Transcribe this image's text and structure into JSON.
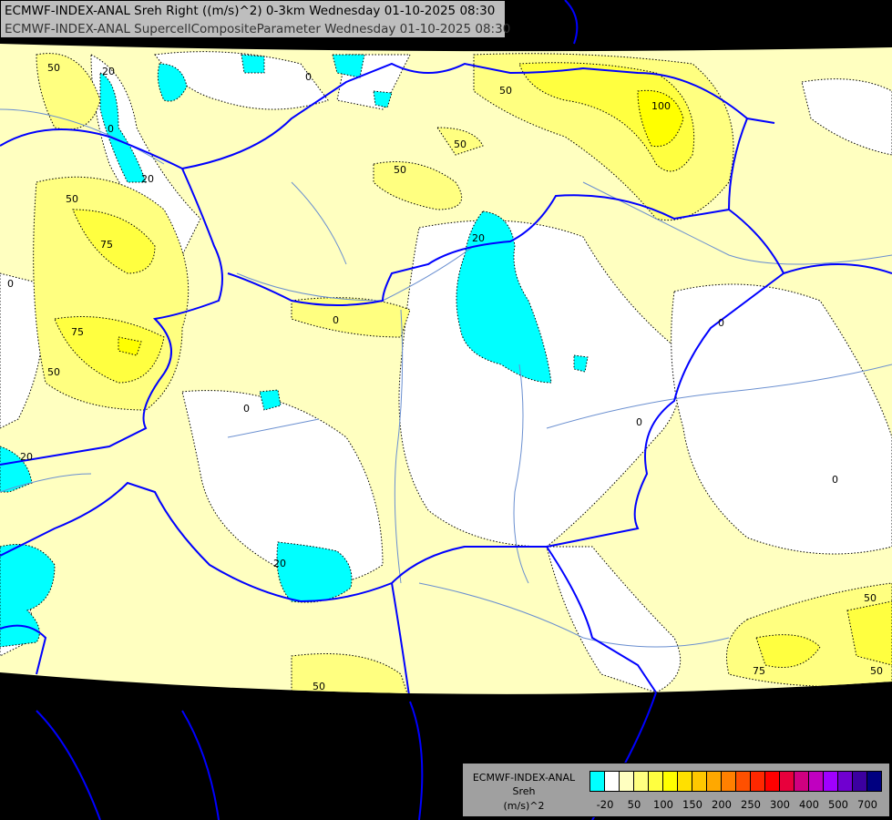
{
  "header": {
    "title_line1": "ECMWF-INDEX-ANAL Sreh Right ((m/s)^2) 0-3km Wednesday 01-10-2025 08:30",
    "title_line2": "ECMWF-INDEX-ANAL SupercellCompositeParameter Wednesday 01-10-2025 08:30"
  },
  "legend": {
    "model": "ECMWF-INDEX-ANAL",
    "variable": "Sreh",
    "unit": "(m/s)^2",
    "colors": [
      "#00ffff",
      "#ffffff",
      "#ffffc0",
      "#ffff80",
      "#ffff40",
      "#ffff00",
      "#ffe000",
      "#ffc800",
      "#ffa800",
      "#ff8000",
      "#ff5000",
      "#ff2800",
      "#ff0000",
      "#e8003c",
      "#d00080",
      "#c000c0",
      "#a000ff",
      "#7000d0",
      "#3c00a0",
      "#000080"
    ],
    "ticks": [
      "-20",
      "50",
      "100",
      "150",
      "200",
      "250",
      "300",
      "400",
      "500",
      "700"
    ]
  },
  "map": {
    "colors": {
      "background": "#000000",
      "field_base": "#ffffc0",
      "field_50": "#ffff80",
      "field_75": "#ffff40",
      "field_100": "#ffff00",
      "negative": "#00ffff",
      "low": "#ffffff",
      "borders": "#0000ff",
      "rivers": "#6a8fd0"
    },
    "contour_labels": [
      "50",
      "20",
      "0",
      "20",
      "50",
      "75",
      "0",
      "75",
      "50",
      "50",
      "50",
      "0",
      "0",
      "50",
      "100",
      "20",
      "0",
      "0",
      "0",
      "20",
      "0",
      "20",
      "50",
      "75",
      "50",
      "50"
    ]
  }
}
